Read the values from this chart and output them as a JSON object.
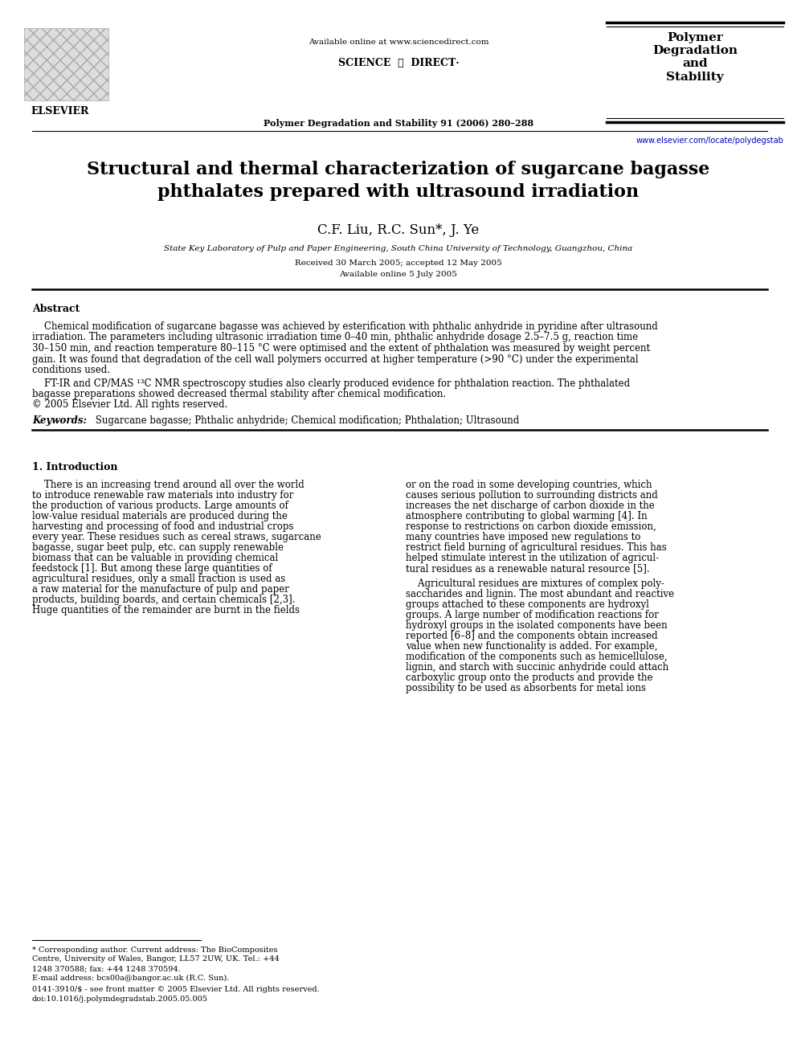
{
  "bg_color": "#ffffff",
  "title_line1": "Structural and thermal characterization of sugarcane bagasse",
  "title_line2": "phthalates prepared with ultrasound irradiation",
  "authors": "C.F. Liu, R.C. Sun*, J. Ye",
  "affiliation": "State Key Laboratory of Pulp and Paper Engineering, South China University of Technology, Guangzhou, China",
  "received": "Received 30 March 2005; accepted 12 May 2005",
  "available": "Available online 5 July 2005",
  "journal_top": "Available online at www.sciencedirect.com",
  "journal_name": "Polymer Degradation and Stability 91 (2006) 280–288",
  "journal_box_title": "Polymer\nDegradation\nand\nStability",
  "journal_url": "www.elsevier.com/locate/polydegstab",
  "elsevier_text": "ELSEVIER",
  "abstract_heading": "Abstract",
  "abs_p1_lines": [
    "    Chemical modification of sugarcane bagasse was achieved by esterification with phthalic anhydride in pyridine after ultrasound",
    "irradiation. The parameters including ultrasonic irradiation time 0–40 min, phthalic anhydride dosage 2.5–7.5 g, reaction time",
    "30–150 min, and reaction temperature 80–115 °C were optimised and the extent of phthalation was measured by weight percent",
    "gain. It was found that degradation of the cell wall polymers occurred at higher temperature (>90 °C) under the experimental",
    "conditions used."
  ],
  "abs_p2_lines": [
    "    FT-IR and CP/MAS ¹³C NMR spectroscopy studies also clearly produced evidence for phthalation reaction. The phthalated",
    "bagasse preparations showed decreased thermal stability after chemical modification.",
    "© 2005 Elsevier Ltd. All rights reserved."
  ],
  "keywords_label": "Keywords:",
  "keywords_text": " Sugarcane bagasse; Phthalic anhydride; Chemical modification; Phthalation; Ultrasound",
  "section1_heading": "1. Introduction",
  "col1_lines": [
    "    There is an increasing trend around all over the world",
    "to introduce renewable raw materials into industry for",
    "the production of various products. Large amounts of",
    "low-value residual materials are produced during the",
    "harvesting and processing of food and industrial crops",
    "every year. These residues such as cereal straws, sugarcane",
    "bagasse, sugar beet pulp, etc. can supply renewable",
    "biomass that can be valuable in providing chemical",
    "feedstock [1]. But among these large quantities of",
    "agricultural residues, only a small fraction is used as",
    "a raw material for the manufacture of pulp and paper",
    "products, building boards, and certain chemicals [2,3].",
    "Huge quantities of the remainder are burnt in the fields"
  ],
  "col2_p1_lines": [
    "or on the road in some developing countries, which",
    "causes serious pollution to surrounding districts and",
    "increases the net discharge of carbon dioxide in the",
    "atmosphere contributing to global warming [4]. In",
    "response to restrictions on carbon dioxide emission,",
    "many countries have imposed new regulations to",
    "restrict field burning of agricultural residues. This has",
    "helped stimulate interest in the utilization of agricul-",
    "tural residues as a renewable natural resource [5]."
  ],
  "col2_p2_lines": [
    "    Agricultural residues are mixtures of complex poly-",
    "saccharides and lignin. The most abundant and reactive",
    "groups attached to these components are hydroxyl",
    "groups. A large number of modification reactions for",
    "hydroxyl groups in the isolated components have been",
    "reported [6–8] and the components obtain increased",
    "value when new functionality is added. For example,",
    "modification of the components such as hemicellulose,",
    "lignin, and starch with succinic anhydride could attach",
    "carboxylic group onto the products and provide the",
    "possibility to be used as absorbents for metal ions"
  ],
  "fn1_lines": [
    "* Corresponding author. Current address: The BioComposites",
    "Centre, University of Wales, Bangor, LL57 2UW, UK. Tel.: +44",
    "1248 370588; fax: +44 1248 370594."
  ],
  "fn2": "E-mail address: bcs00a@bangor.ac.uk (R.C. Sun).",
  "footer_lines": [
    "0141-3910/$ - see front matter © 2005 Elsevier Ltd. All rights reserved.",
    "doi:10.1016/j.polymdegradstab.2005.05.005"
  ],
  "link_color": "#0000bb",
  "text_color": "#000000"
}
